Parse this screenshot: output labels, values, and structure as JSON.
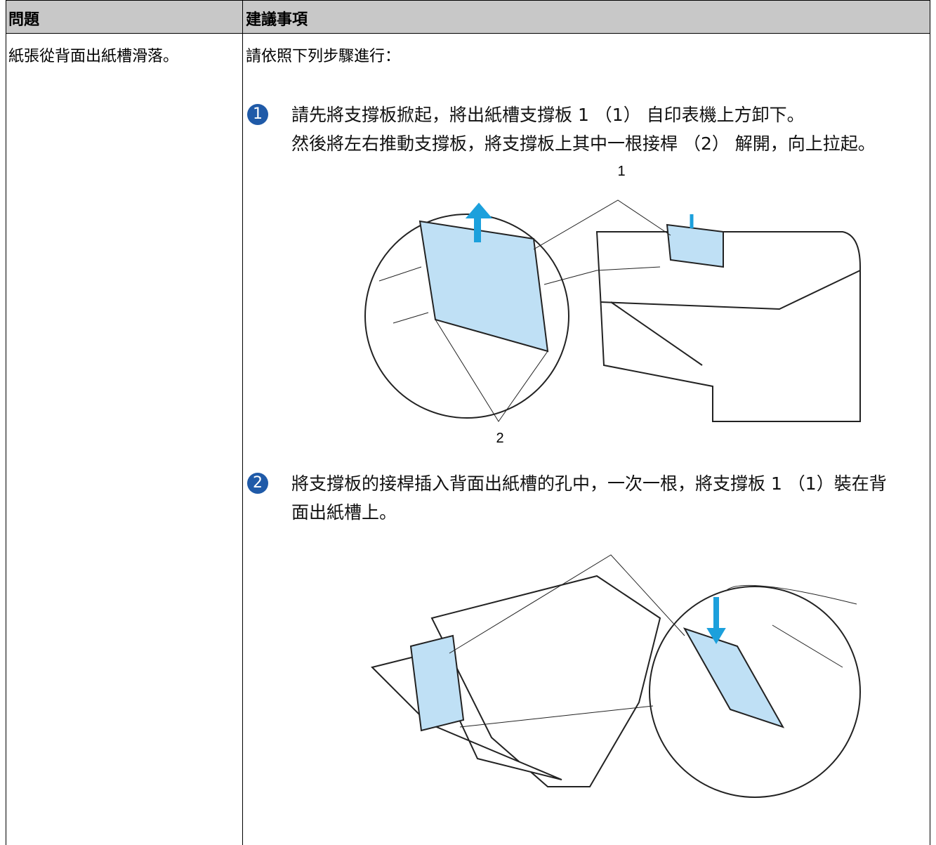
{
  "table": {
    "headers": [
      "問題",
      "建議事項"
    ],
    "rows": [
      [
        "紙張從背面出紙槽滑落。",
        "請依照下列步驟進行："
      ]
    ]
  },
  "steps": [
    {
      "number": "1",
      "paragraphs": [
        "請先將支撐板掀起，將出紙槽支撐板 1 （1） 自印表機上方卸下。",
        "然後將左右推動支撐板，將支撐板上其中一根接桿 （2） 解開，向上拉起。"
      ],
      "figure_labels": [
        "1",
        "2"
      ]
    },
    {
      "number": "2",
      "paragraphs": [
        "將支撐板的接桿插入背面出紙槽的孔中，一次一根，將支撐板 1 （1）裝在背面出紙槽上。"
      ]
    }
  ]
}
